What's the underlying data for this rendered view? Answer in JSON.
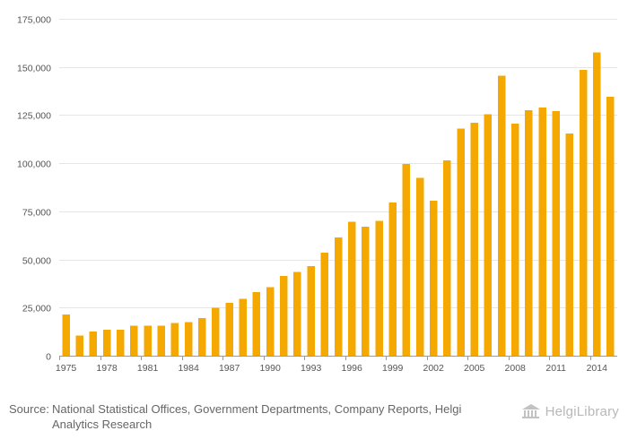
{
  "chart_data": {
    "type": "bar",
    "title": "",
    "xlabel": "",
    "ylabel": "",
    "ylim": [
      0,
      175000
    ],
    "yticks": [
      0,
      25000,
      50000,
      75000,
      100000,
      125000,
      150000,
      175000
    ],
    "ytick_labels": [
      "0",
      "25,000",
      "50,000",
      "75,000",
      "100,000",
      "125,000",
      "150,000",
      "175,000"
    ],
    "categories": [
      "1975",
      "1976",
      "1977",
      "1978",
      "1979",
      "1980",
      "1981",
      "1982",
      "1983",
      "1984",
      "1985",
      "1986",
      "1987",
      "1988",
      "1989",
      "1990",
      "1991",
      "1992",
      "1993",
      "1994",
      "1995",
      "1996",
      "1997",
      "1998",
      "1999",
      "2000",
      "2001",
      "2002",
      "2003",
      "2004",
      "2005",
      "2006",
      "2007",
      "2008",
      "2009",
      "2010",
      "2011",
      "2012",
      "2013",
      "2014",
      "2015"
    ],
    "xtick_labels": [
      "1975",
      "1978",
      "1981",
      "1984",
      "1987",
      "1990",
      "1993",
      "1996",
      "1999",
      "2002",
      "2005",
      "2008",
      "2011",
      "2014"
    ],
    "values": [
      21500,
      10500,
      12500,
      13500,
      13500,
      15500,
      15500,
      15500,
      17000,
      17500,
      19500,
      25000,
      27500,
      29500,
      33000,
      35500,
      41500,
      43500,
      46500,
      53500,
      61500,
      69500,
      67000,
      70000,
      79500,
      99500,
      92500,
      80500,
      101500,
      118000,
      121000,
      125500,
      145500,
      120500,
      127500,
      129000,
      127000,
      115500,
      148500,
      157500,
      134500
    ],
    "bar_color": "#f5a800",
    "grid": true
  },
  "footer": {
    "source_label": "Source:",
    "source_text": "National Statistical Offices, Government Departments, Company Reports, Helgi Analytics Research"
  },
  "brand": {
    "name": "HelgiLibrary",
    "icon": "library-building-icon"
  }
}
